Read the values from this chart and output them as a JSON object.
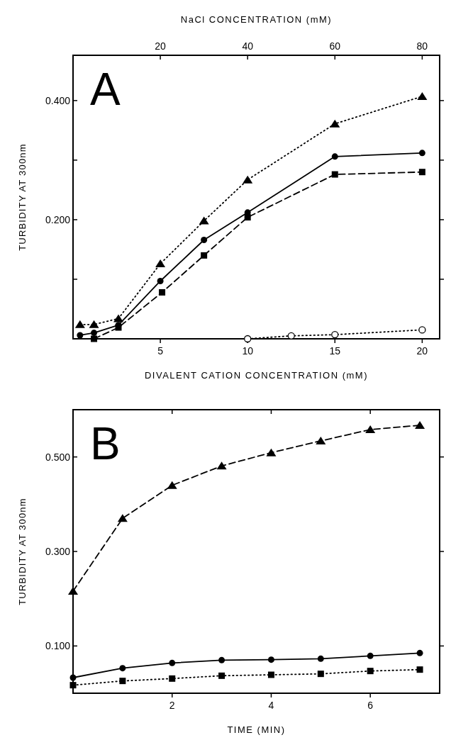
{
  "chart_data": [
    {
      "type": "line",
      "xlabel": "DIVALENT CATION CONCENTRATION (mM)",
      "x2label": "NaCl CONCENTRATION (mM)",
      "ylabel": "TURBIDITY AT 300nm",
      "annotations": [
        "A"
      ],
      "xlim": [
        0,
        21
      ],
      "xticks": [
        5,
        10,
        15,
        20
      ],
      "x2lim": [
        0,
        84
      ],
      "x2ticks": [
        20,
        40,
        60,
        80
      ],
      "ylim": [
        0,
        0.476
      ],
      "yticks": [
        {
          "value": 0.1,
          "label": null
        },
        {
          "value": 0.2,
          "label": "0.200"
        },
        {
          "value": 0.3,
          "label": null
        },
        {
          "value": 0.4,
          "label": "0.400"
        }
      ],
      "grid": false,
      "series": [
        {
          "color": "#000000",
          "marker": "triangle",
          "line_style": "dotted",
          "x": [
            0.4,
            1.2,
            2.6,
            5,
            7.5,
            10,
            15,
            20
          ],
          "values": [
            0.024,
            0.024,
            0.034,
            0.126,
            0.198,
            0.267,
            0.361,
            0.407
          ]
        },
        {
          "color": "#000000",
          "marker": "circle",
          "line_style": "solid",
          "x": [
            0.4,
            1.2,
            2.6,
            5,
            7.5,
            10,
            15,
            20
          ],
          "values": [
            0.006,
            0.01,
            0.023,
            0.097,
            0.166,
            0.212,
            0.306,
            0.312
          ]
        },
        {
          "color": "#000000",
          "marker": "square",
          "line_style": "dashed",
          "x": [
            1.2,
            2.6,
            5.1,
            7.5,
            10,
            15,
            20
          ],
          "values": [
            0,
            0.019,
            0.078,
            0.14,
            0.204,
            0.276,
            0.28
          ]
        },
        {
          "color": "#000000",
          "marker": "open-circle",
          "line_style": "dotted",
          "axis": "x2",
          "x": [
            40,
            50,
            60,
            80
          ],
          "values": [
            0,
            0.005,
            0.007,
            0.015
          ]
        }
      ]
    },
    {
      "type": "line",
      "xlabel": "TIME (MIN)",
      "ylabel": "TURBIDITY AT 300nm",
      "annotations": [
        "B"
      ],
      "xlim": [
        0,
        7.4
      ],
      "xticks": [
        2,
        4,
        6
      ],
      "ylim": [
        0,
        0.6
      ],
      "yticks": [
        {
          "value": 0.1,
          "label": "0.100"
        },
        {
          "value": 0.3,
          "label": "0.300"
        },
        {
          "value": 0.5,
          "label": "0.500"
        }
      ],
      "grid": false,
      "series": [
        {
          "color": "#000000",
          "marker": "triangle",
          "line_style": "dashed",
          "x": [
            0,
            1,
            2,
            3,
            4,
            5,
            6,
            7
          ],
          "values": [
            0.216,
            0.37,
            0.44,
            0.481,
            0.509,
            0.534,
            0.558,
            0.567
          ]
        },
        {
          "color": "#000000",
          "marker": "circle",
          "line_style": "solid",
          "x": [
            0,
            1,
            2,
            3,
            4,
            5,
            6,
            7
          ],
          "values": [
            0.033,
            0.053,
            0.064,
            0.07,
            0.071,
            0.073,
            0.079,
            0.085
          ]
        },
        {
          "color": "#000000",
          "marker": "square",
          "line_style": "dotted",
          "x": [
            0,
            1,
            2,
            3,
            4,
            5,
            6,
            7
          ],
          "values": [
            0.017,
            0.026,
            0.031,
            0.037,
            0.039,
            0.041,
            0.047,
            0.05
          ]
        }
      ]
    }
  ]
}
